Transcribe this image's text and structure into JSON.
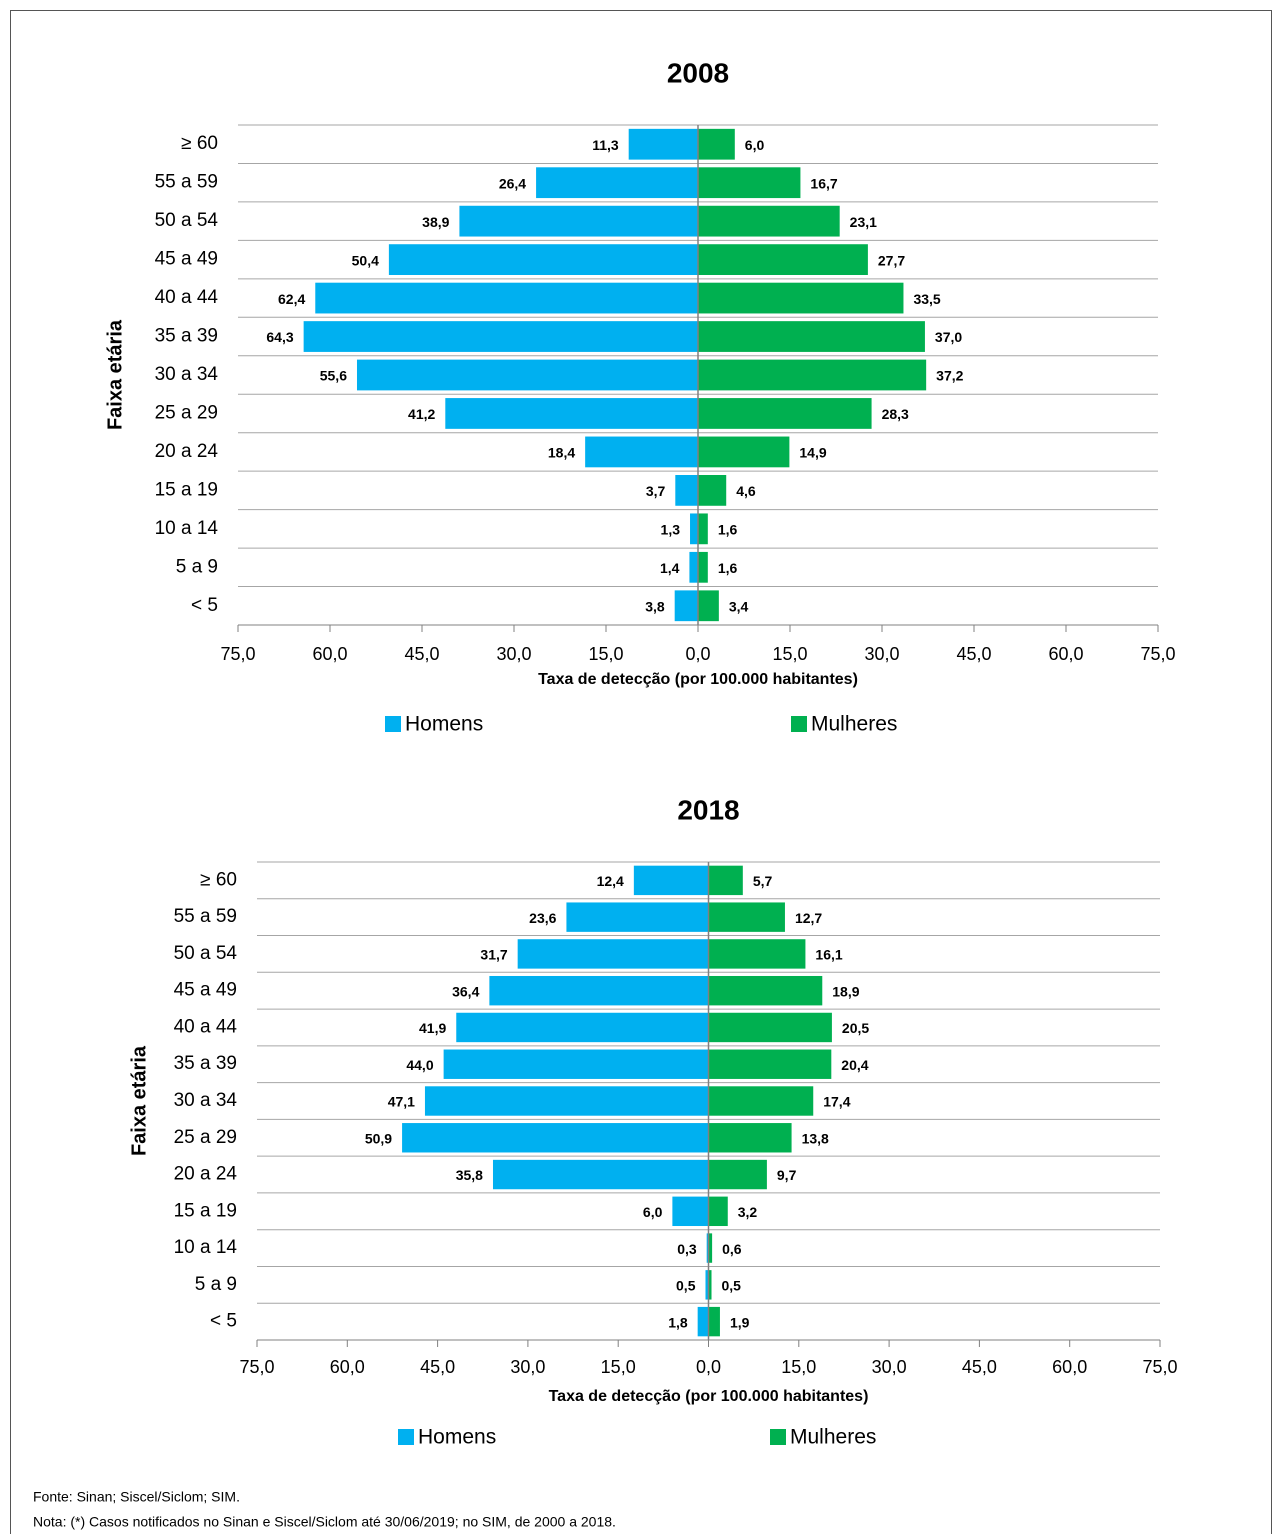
{
  "chart_data": [
    {
      "type": "bar",
      "title": "2008",
      "x_label": "Taxa de detecção (por 100.000 habitantes)",
      "y_label": "Faixa etária",
      "categories": [
        "≥ 60",
        "55 a 59",
        "50 a 54",
        "45 a 49",
        "40 a 44",
        "35 a 39",
        "30 a 34",
        "25 a 29",
        "20 a 24",
        "15 a 19",
        "10 a 14",
        "5 a 9",
        "< 5"
      ],
      "series": [
        {
          "name": "Homens",
          "color": "#00b0f0",
          "values": [
            -11.3,
            -26.4,
            -38.9,
            -50.4,
            -62.4,
            -64.3,
            -55.6,
            -41.2,
            -18.4,
            -3.7,
            -1.3,
            -1.4,
            -3.8
          ],
          "value_labels": [
            "11,3",
            "26,4",
            "38,9",
            "50,4",
            "62,4",
            "64,3",
            "55,6",
            "41,2",
            "18,4",
            "3,7",
            "1,3",
            "1,4",
            "3,8"
          ]
        },
        {
          "name": "Mulheres",
          "color": "#00b050",
          "values": [
            6.0,
            16.7,
            23.1,
            27.7,
            33.5,
            37.0,
            37.2,
            28.3,
            14.9,
            4.6,
            1.6,
            1.6,
            3.4
          ],
          "value_labels": [
            "6,0",
            "16,7",
            "23,1",
            "27,7",
            "33,5",
            "37,0",
            "37,2",
            "28,3",
            "14,9",
            "4,6",
            "1,6",
            "1,6",
            "3,4"
          ]
        }
      ],
      "xlim": [
        -75,
        75
      ],
      "xticks": [
        {
          "value": -75,
          "label": "75,0"
        },
        {
          "value": -60,
          "label": "60,0"
        },
        {
          "value": -45,
          "label": "45,0"
        },
        {
          "value": -30,
          "label": "30,0"
        },
        {
          "value": -15,
          "label": "15,0"
        },
        {
          "value": 0,
          "label": "0,0"
        },
        {
          "value": 15,
          "label": "15,0"
        },
        {
          "value": 30,
          "label": "30,0"
        },
        {
          "value": 45,
          "label": "45,0"
        },
        {
          "value": 60,
          "label": "60,0"
        },
        {
          "value": 75,
          "label": "75,0"
        }
      ],
      "legend": "bottom"
    },
    {
      "type": "bar",
      "title": "2018",
      "x_label": "Taxa de detecção (por 100.000 habitantes)",
      "y_label": "Faixa etária",
      "categories": [
        "≥ 60",
        "55 a 59",
        "50 a 54",
        "45 a 49",
        "40 a 44",
        "35 a 39",
        "30 a 34",
        "25 a 29",
        "20 a 24",
        "15 a 19",
        "10 a 14",
        "5 a 9",
        "< 5"
      ],
      "series": [
        {
          "name": "Homens",
          "color": "#00b0f0",
          "values": [
            -12.4,
            -23.6,
            -31.7,
            -36.4,
            -41.9,
            -44.0,
            -47.1,
            -50.9,
            -35.8,
            -6.0,
            -0.3,
            -0.5,
            -1.8
          ],
          "value_labels": [
            "12,4",
            "23,6",
            "31,7",
            "36,4",
            "41,9",
            "44,0",
            "47,1",
            "50,9",
            "35,8",
            "6,0",
            "0,3",
            "0,5",
            "1,8"
          ]
        },
        {
          "name": "Mulheres",
          "color": "#00b050",
          "values": [
            5.7,
            12.7,
            16.1,
            18.9,
            20.5,
            20.4,
            17.4,
            13.8,
            9.7,
            3.2,
            0.6,
            0.5,
            1.9
          ],
          "value_labels": [
            "5,7",
            "12,7",
            "16,1",
            "18,9",
            "20,5",
            "20,4",
            "17,4",
            "13,8",
            "9,7",
            "3,2",
            "0,6",
            "0,5",
            "1,9"
          ]
        }
      ],
      "xlim": [
        -75,
        75
      ],
      "xticks": [
        {
          "value": -75,
          "label": "75,0"
        },
        {
          "value": -60,
          "label": "60,0"
        },
        {
          "value": -45,
          "label": "45,0"
        },
        {
          "value": -30,
          "label": "30,0"
        },
        {
          "value": -15,
          "label": "15,0"
        },
        {
          "value": 0,
          "label": "0,0"
        },
        {
          "value": 15,
          "label": "15,0"
        },
        {
          "value": 30,
          "label": "30,0"
        },
        {
          "value": 45,
          "label": "45,0"
        },
        {
          "value": 60,
          "label": "60,0"
        },
        {
          "value": 75,
          "label": "75,0"
        }
      ],
      "legend": "bottom"
    }
  ],
  "footer": {
    "source": "Fonte: Sinan; Siscel/Siclom; SIM.",
    "note": "Nota: (*) Casos notificados no Sinan e Siscel/Siclom até 30/06/2019; no SIM, de 2000 a 2018."
  }
}
